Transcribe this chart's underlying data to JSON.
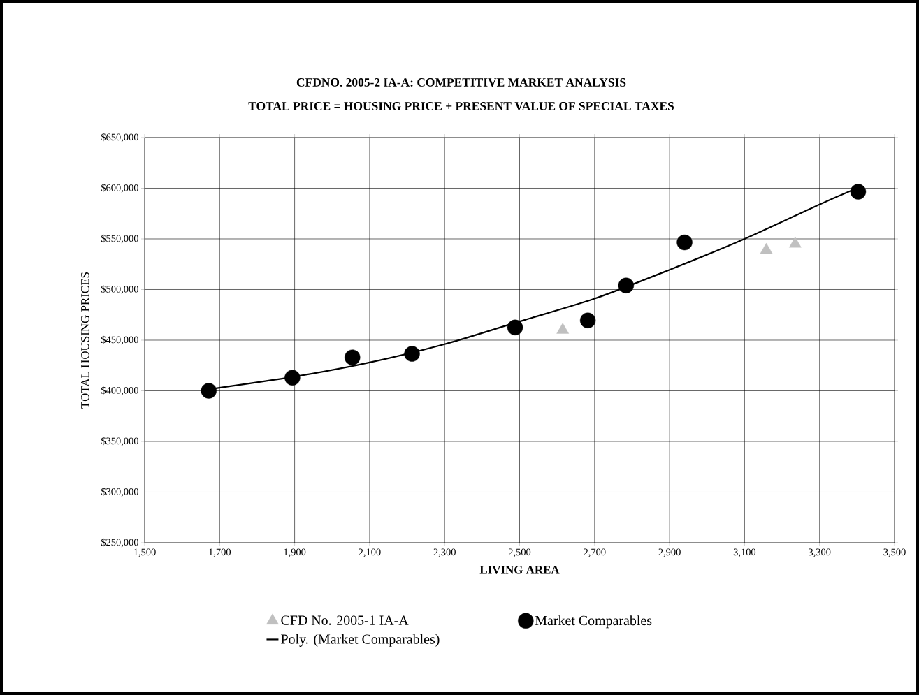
{
  "chart_data": {
    "type": "scatter",
    "title": "CFDNO. 2005-2 IA-A:  COMPETITIVE MARKET ANALYSIS",
    "subtitle": "TOTAL PRICE =  HOUSING PRICE + PRESENT VALUE OF SPECIAL TAXES",
    "xlabel": "LIVING AREA",
    "ylabel": "TOTAL HOUSING PRICES",
    "xlim": [
      1500,
      3500
    ],
    "ylim": [
      250000,
      650000
    ],
    "xticks": [
      {
        "value": 1500,
        "label": "1,500"
      },
      {
        "value": 1700,
        "label": "1,700"
      },
      {
        "value": 1900,
        "label": "1,900"
      },
      {
        "value": 2100,
        "label": "2,100"
      },
      {
        "value": 2300,
        "label": "2,300"
      },
      {
        "value": 2500,
        "label": "2,500"
      },
      {
        "value": 2700,
        "label": "2,700"
      },
      {
        "value": 2900,
        "label": "2,900"
      },
      {
        "value": 3100,
        "label": "3,100"
      },
      {
        "value": 3300,
        "label": "3,300"
      },
      {
        "value": 3500,
        "label": "3,500"
      }
    ],
    "yticks": [
      {
        "value": 250000,
        "label": "$250,000"
      },
      {
        "value": 300000,
        "label": "$300,000"
      },
      {
        "value": 350000,
        "label": "$350,000"
      },
      {
        "value": 400000,
        "label": "$400,000"
      },
      {
        "value": 450000,
        "label": "$450,000"
      },
      {
        "value": 500000,
        "label": "$500,000"
      },
      {
        "value": 550000,
        "label": "$550,000"
      },
      {
        "value": 600000,
        "label": "$600,000"
      },
      {
        "value": 650000,
        "label": "$650,000"
      }
    ],
    "grid": true,
    "legend": "bottom",
    "series": [
      {
        "name": "CFD No. 2005-1 IA-A",
        "marker": "triangle",
        "color": "#c0c0c0",
        "x": [
          2615,
          3158,
          3235
        ],
        "values": [
          460000,
          539000,
          545000
        ]
      },
      {
        "name": "Market Comparables",
        "marker": "circle",
        "color": "#000000",
        "x": [
          1671,
          1894,
          2054,
          2213,
          2488,
          2682,
          2784,
          2940,
          3403
        ],
        "values": [
          400000,
          413000,
          433000,
          436500,
          462500,
          469500,
          504000,
          546500,
          596500
        ]
      },
      {
        "name": "Poly. (Market Comparables)",
        "type": "line",
        "marker": "none",
        "line_style": "solid",
        "color": "#000000",
        "x": [
          1671,
          1900,
          2100,
          2300,
          2500,
          2700,
          2900,
          3100,
          3300,
          3403
        ],
        "values": [
          401500,
          414000,
          428000,
          446000,
          468500,
          491000,
          519500,
          550000,
          584000,
          600500
        ]
      }
    ]
  }
}
